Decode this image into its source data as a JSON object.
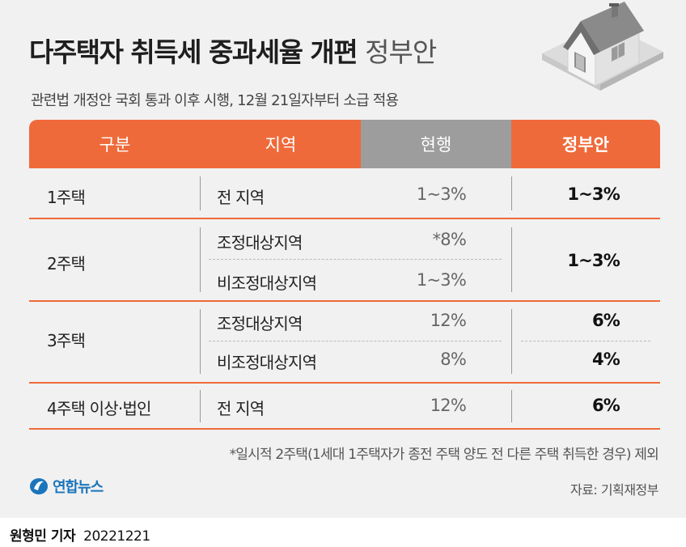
{
  "title": {
    "main": "다주택자 취득세 중과세율 개편",
    "suffix": "정부안"
  },
  "subtitle": "관련법 개정안 국회 통과 이후 시행, 12월 21일자부터 소급 적용",
  "table": {
    "headers": [
      "구분",
      "지역",
      "현행",
      "정부안"
    ],
    "rows": [
      {
        "category": "1주택",
        "regions": [
          {
            "region": "전 지역",
            "current": "1~3%"
          }
        ],
        "proposal": "1~3%"
      },
      {
        "category": "2주택",
        "regions": [
          {
            "region": "조정대상지역",
            "current": "*8%"
          },
          {
            "region": "비조정대상지역",
            "current": "1~3%"
          }
        ],
        "proposal": "1~3%"
      },
      {
        "category": "3주택",
        "regions": [
          {
            "region": "조정대상지역",
            "current": "12%",
            "proposal": "6%"
          },
          {
            "region": "비조정대상지역",
            "current": "8%",
            "proposal": "4%"
          }
        ]
      },
      {
        "category": "4주택 이상·법인",
        "regions": [
          {
            "region": "전 지역",
            "current": "12%"
          }
        ],
        "proposal": "6%"
      }
    ]
  },
  "footnote": "*일시적 2주택(1세대 1주택자가 종전 주택 양도 전 다른 주택 취득한 경우) 제외",
  "logo": "연합뉴스",
  "source": "자료: 기획재정부",
  "byline": {
    "reporter": "원형민 기자",
    "date": "20221221"
  },
  "colors": {
    "accent": "#ef6a3a",
    "header_gray": "#9d9d9d",
    "background": "#f1f1f1",
    "logo_blue": "#1b75bb"
  },
  "icons": [
    "house-icon",
    "yonhap-logo-icon"
  ]
}
